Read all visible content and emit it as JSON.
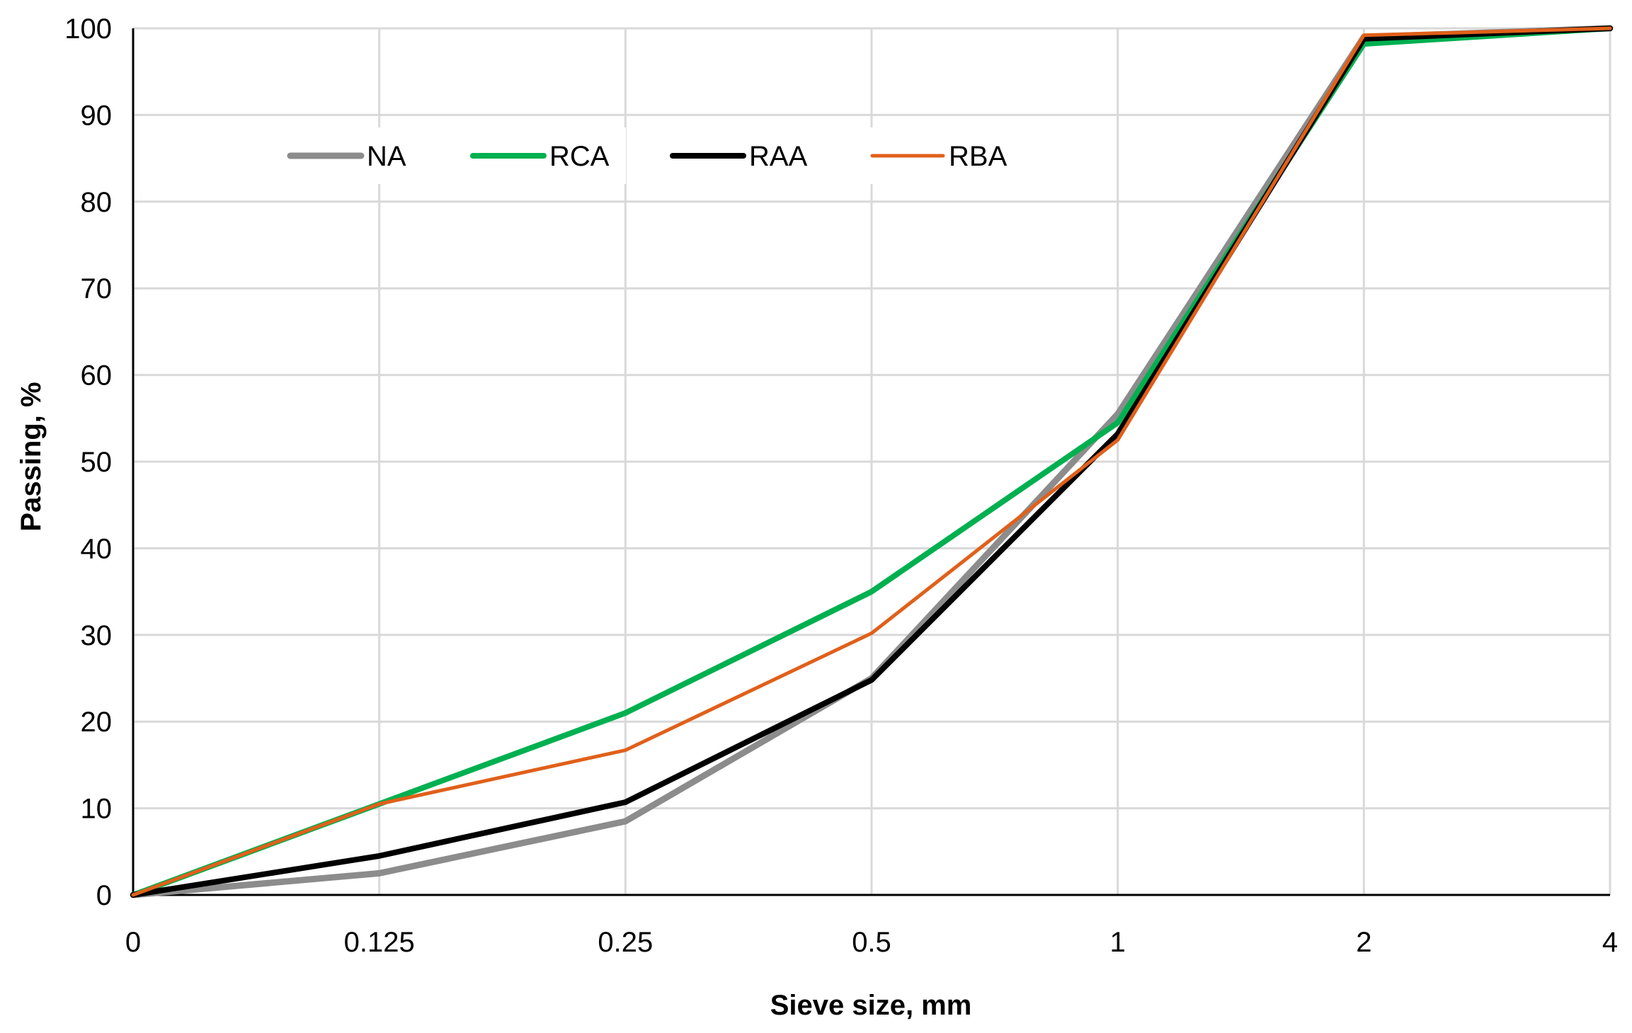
{
  "chart_data": {
    "type": "line",
    "title": "",
    "xlabel": "Sieve size, mm",
    "ylabel": "Passing, %",
    "categories": [
      "0",
      "0.125",
      "0.25",
      "0.5",
      "1",
      "2",
      "4"
    ],
    "ylim": [
      0,
      100
    ],
    "yticks": [
      0,
      10,
      20,
      30,
      40,
      50,
      60,
      70,
      80,
      90,
      100
    ],
    "grid": true,
    "legend_position": "top-left inside",
    "series": [
      {
        "name": "NA",
        "color": "#8c8c8c",
        "values": [
          0,
          2.5,
          8.5,
          25,
          55.5,
          99,
          100
        ]
      },
      {
        "name": "RCA",
        "color": "#00b050",
        "values": [
          0,
          10.5,
          21,
          35,
          54.5,
          98.2,
          100
        ]
      },
      {
        "name": "RAA",
        "color": "#000000",
        "values": [
          0,
          4.5,
          10.7,
          24.8,
          53.2,
          98.8,
          100
        ]
      },
      {
        "name": "RBA",
        "color": "#e0601a",
        "values": [
          0,
          10.5,
          16.7,
          30.2,
          52.5,
          99.2,
          100
        ]
      }
    ]
  }
}
